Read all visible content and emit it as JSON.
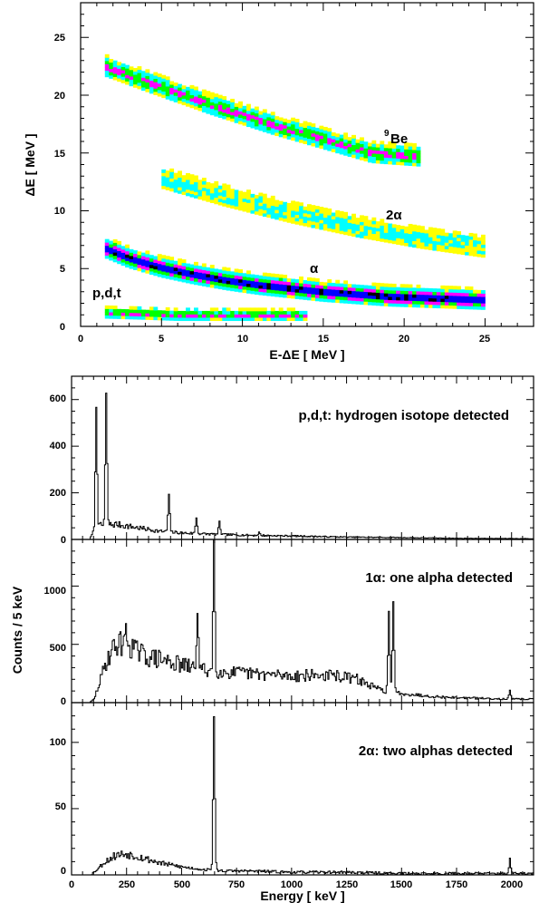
{
  "figure": {
    "panel_top": {
      "xlabel": "E-ΔE [ MeV ]",
      "ylabel": "ΔE [ MeV ]",
      "xlim": [
        0,
        28
      ],
      "ylim": [
        0,
        28
      ],
      "xticks": [
        "0",
        "5",
        "10",
        "15",
        "20",
        "25"
      ],
      "yticks": [
        "0",
        "5",
        "10",
        "15",
        "20",
        "25"
      ],
      "labels": {
        "be9_sup": "9",
        "be9_main": "Be",
        "two_alpha": "2α",
        "alpha": "α",
        "pdt": "p,d,t"
      }
    },
    "spectra": {
      "xlabel": "Energy [ keV ]",
      "ylabel": "Counts / 5 keV",
      "xlim": [
        0,
        2100
      ],
      "xticks": [
        "0",
        "250",
        "500",
        "750",
        "1000",
        "1250",
        "1500",
        "1750",
        "2000"
      ],
      "panel_a": {
        "title": "p,d,t: hydrogen isotope detected",
        "ylim": [
          0,
          700
        ],
        "yticks": [
          "0",
          "200",
          "400",
          "600"
        ]
      },
      "panel_b": {
        "title": "1α: one alpha detected",
        "ylim": [
          0,
          1400
        ],
        "yticks": [
          "0",
          "500",
          "1000"
        ]
      },
      "panel_c": {
        "title": "2α: two alphas detected",
        "ylim": [
          0,
          130
        ],
        "yticks": [
          "0",
          "50",
          "100"
        ]
      }
    }
  },
  "chart_data": [
    {
      "type": "heatmap",
      "xlabel": "E-ΔE [ MeV ]",
      "ylabel": "ΔE [ MeV ]",
      "xlim": [
        0,
        28
      ],
      "ylim": [
        0,
        28
      ],
      "grid": false,
      "colormap": [
        "#ffff00",
        "#00ffff",
        "#00ff00",
        "#ff00ff",
        "#0000ff",
        "#000000"
      ],
      "bands": [
        {
          "name": "9Be",
          "x": [
            1.5,
            4,
            6,
            8,
            10,
            12,
            14,
            16,
            18,
            20,
            21
          ],
          "y": [
            22.5,
            21.2,
            20.2,
            19.2,
            18.3,
            17.4,
            16.6,
            15.8,
            15.0,
            14.8,
            14.7
          ],
          "peak_intensity": 3
        },
        {
          "name": "2α",
          "x": [
            5,
            7,
            9,
            11,
            13,
            15,
            17,
            19,
            21,
            23,
            25
          ],
          "y": [
            12.8,
            12.0,
            11.2,
            10.5,
            9.8,
            9.2,
            8.6,
            8.1,
            7.6,
            7.2,
            6.8
          ],
          "peak_intensity": 1
        },
        {
          "name": "α",
          "x": [
            1.5,
            3,
            5,
            7,
            9,
            11,
            13,
            15,
            17,
            19,
            21,
            23,
            25
          ],
          "y": [
            6.8,
            5.9,
            5.1,
            4.5,
            4.0,
            3.6,
            3.3,
            3.0,
            2.8,
            2.6,
            2.5,
            2.4,
            2.3
          ],
          "peak_intensity": 5
        },
        {
          "name": "p,d,t",
          "x": [
            1.5,
            4,
            6,
            8,
            10,
            12,
            14
          ],
          "y": [
            1.2,
            1.1,
            1.0,
            1.0,
            1.0,
            1.0,
            1.0
          ],
          "peak_intensity": 3
        }
      ]
    },
    {
      "type": "line",
      "title": "p,d,t: hydrogen isotope detected",
      "xlabel": "Energy [ keV ]",
      "ylabel": "Counts / 5 keV",
      "xlim": [
        0,
        2100
      ],
      "ylim": [
        0,
        700
      ],
      "continuum": {
        "x": [
          80,
          100,
          130,
          200,
          300,
          400,
          500,
          650,
          800,
          1000,
          1250,
          1500,
          1750,
          2000,
          2100
        ],
        "y": [
          0,
          40,
          60,
          65,
          50,
          35,
          28,
          22,
          18,
          15,
          10,
          8,
          5,
          4,
          3
        ]
      },
      "peaks": [
        {
          "x": 110,
          "y": 570
        },
        {
          "x": 155,
          "y": 620
        },
        {
          "x": 440,
          "y": 190
        },
        {
          "x": 565,
          "y": 95
        },
        {
          "x": 670,
          "y": 75
        },
        {
          "x": 850,
          "y": 30
        }
      ]
    },
    {
      "type": "line",
      "title": "1α: one alpha detected",
      "xlabel": "Energy [ keV ]",
      "ylabel": "Counts / 5 keV",
      "xlim": [
        0,
        2100
      ],
      "ylim": [
        0,
        1400
      ],
      "continuum": {
        "x": [
          80,
          100,
          130,
          160,
          200,
          250,
          300,
          350,
          400,
          450,
          500,
          550,
          600,
          700,
          800,
          900,
          1000,
          1100,
          1200,
          1300,
          1350,
          1400,
          1500,
          1600,
          1700,
          1800,
          1900,
          2000,
          2100
        ],
        "y": [
          0,
          30,
          200,
          380,
          500,
          520,
          430,
          390,
          370,
          350,
          320,
          300,
          280,
          260,
          250,
          240,
          230,
          235,
          230,
          200,
          150,
          110,
          80,
          60,
          45,
          40,
          35,
          30,
          30
        ]
      },
      "peaks": [
        {
          "x": 240,
          "y": 630
        },
        {
          "x": 570,
          "y": 810
        },
        {
          "x": 645,
          "y": 1380
        },
        {
          "x": 1440,
          "y": 780
        },
        {
          "x": 1460,
          "y": 850
        },
        {
          "x": 1990,
          "y": 100
        }
      ]
    },
    {
      "type": "line",
      "title": "2α: two alphas detected",
      "xlabel": "Energy [ keV ]",
      "ylabel": "Counts / 5 keV",
      "xlim": [
        0,
        2100
      ],
      "ylim": [
        0,
        130
      ],
      "continuum": {
        "x": [
          80,
          100,
          150,
          200,
          250,
          300,
          400,
          500,
          600,
          700,
          800,
          1000,
          1250,
          1500,
          1750,
          2000,
          2100
        ],
        "y": [
          0,
          2,
          10,
          15,
          16,
          14,
          9,
          6,
          4,
          3,
          3,
          2,
          2,
          1,
          1,
          1,
          1
        ]
      },
      "peaks": [
        {
          "x": 645,
          "y": 120
        },
        {
          "x": 1990,
          "y": 12
        }
      ]
    }
  ]
}
